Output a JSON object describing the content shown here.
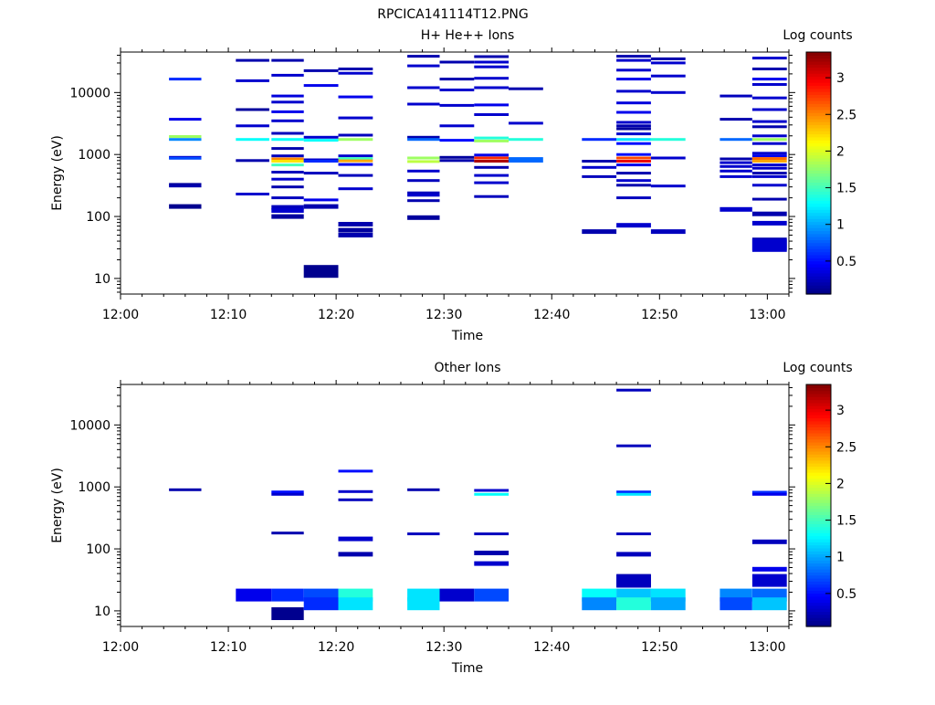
{
  "figure_title": "RPCICA141114T12.PNG",
  "chart_data": [
    {
      "type": "heatmap",
      "title": "H+ He++ Ions",
      "xlabel": "Time",
      "ylabel": "Energy (eV)",
      "y_scale": "log",
      "xlim_minutes": [
        0,
        62
      ],
      "ylim": [
        5.6,
        45000
      ],
      "x_ticks": [
        "12:00",
        "12:10",
        "12:20",
        "12:30",
        "12:40",
        "12:50",
        "13:00"
      ],
      "y_ticks": [
        "10",
        "100",
        "1000",
        "10000"
      ],
      "colorbar": {
        "label": "Log counts",
        "range": [
          0.05,
          3.35
        ],
        "ticks": [
          "0.5",
          "1",
          "1.5",
          "2",
          "2.5",
          "3"
        ],
        "colormap": "jet"
      },
      "columns": [
        {
          "t0": 4.5,
          "t1": 7.5,
          "cells": [
            [
              16500,
              0.6
            ],
            [
              3700,
              0.4
            ],
            [
              1950,
              1.8
            ],
            [
              1750,
              0.9
            ],
            [
              900,
              0.3
            ],
            [
              870,
              0.7
            ],
            [
              330,
              0.15
            ],
            [
              310,
              0.2
            ],
            [
              145,
              0.1
            ]
          ]
        },
        {
          "t0": 10.7,
          "t1": 13.8,
          "cells": [
            [
              33000,
              0.2
            ],
            [
              15500,
              0.3
            ],
            [
              5300,
              0.15
            ],
            [
              2900,
              0.3
            ],
            [
              1750,
              1.3
            ],
            [
              800,
              0.2
            ],
            [
              230,
              0.3
            ]
          ]
        },
        {
          "t0": 14,
          "t1": 17,
          "cells": [
            [
              33000,
              0.2
            ],
            [
              19000,
              0.3
            ],
            [
              8800,
              0.35
            ],
            [
              7000,
              0.3
            ],
            [
              4900,
              0.4
            ],
            [
              3500,
              0.3
            ],
            [
              2200,
              0.25
            ],
            [
              1750,
              1.3
            ],
            [
              1250,
              0.2
            ],
            [
              950,
              0.25
            ],
            [
              850,
              2.5
            ],
            [
              780,
              2.2
            ],
            [
              680,
              1.5
            ],
            [
              520,
              0.25
            ],
            [
              400,
              0.3
            ],
            [
              300,
              0.2
            ],
            [
              200,
              0.25
            ],
            [
              140,
              0.25
            ],
            [
              125,
              0.3
            ],
            [
              100,
              0.15
            ]
          ]
        },
        {
          "t0": 17,
          "t1": 20.2,
          "cells": [
            [
              22500,
              0.2
            ],
            [
              13000,
              0.4
            ],
            [
              1900,
              0.3
            ],
            [
              1700,
              1.3
            ],
            [
              820,
              0.3
            ],
            [
              780,
              0.6
            ],
            [
              500,
              0.25
            ],
            [
              185,
              0.4
            ],
            [
              145,
              0.2
            ],
            [
              13,
              0.1
            ]
          ]
        },
        {
          "t0": 20.2,
          "t1": 23.4,
          "cells": [
            [
              24000,
              0.2
            ],
            [
              20500,
              0.3
            ],
            [
              8500,
              0.4
            ],
            [
              3900,
              0.3
            ],
            [
              2050,
              0.25
            ],
            [
              1750,
              1.8
            ],
            [
              950,
              0.3
            ],
            [
              860,
              1.5
            ],
            [
              790,
              2.4
            ],
            [
              690,
              0.4
            ],
            [
              460,
              0.25
            ],
            [
              280,
              0.3
            ],
            [
              75,
              0.2
            ],
            [
              60,
              0.15
            ],
            [
              50,
              0.2
            ]
          ]
        },
        {
          "t0": 26.6,
          "t1": 29.6,
          "cells": [
            [
              38500,
              0.2
            ],
            [
              27000,
              0.3
            ],
            [
              12000,
              0.3
            ],
            [
              6500,
              0.3
            ],
            [
              1900,
              0.2
            ],
            [
              1750,
              0.8
            ],
            [
              880,
              1.8
            ],
            [
              770,
              1.9
            ],
            [
              540,
              0.3
            ],
            [
              380,
              0.25
            ],
            [
              240,
              0.25
            ],
            [
              220,
              0.3
            ],
            [
              180,
              0.2
            ],
            [
              96,
              0.15
            ]
          ]
        },
        {
          "t0": 29.6,
          "t1": 32.8,
          "cells": [
            [
              31000,
              0.2
            ],
            [
              16500,
              0.2
            ],
            [
              11000,
              0.3
            ],
            [
              6200,
              0.3
            ],
            [
              2900,
              0.3
            ],
            [
              1700,
              0.5
            ],
            [
              900,
              0.15
            ],
            [
              800,
              0.2
            ]
          ]
        },
        {
          "t0": 32.8,
          "t1": 36,
          "cells": [
            [
              38000,
              0.2
            ],
            [
              31000,
              0.3
            ],
            [
              26000,
              0.3
            ],
            [
              17000,
              0.3
            ],
            [
              12000,
              0.3
            ],
            [
              6300,
              0.4
            ],
            [
              4400,
              0.3
            ],
            [
              1850,
              1.4
            ],
            [
              1650,
              1.8
            ],
            [
              980,
              0.4
            ],
            [
              880,
              2.8
            ],
            [
              780,
              3.2
            ],
            [
              620,
              0.2
            ],
            [
              460,
              0.3
            ],
            [
              350,
              0.3
            ],
            [
              210,
              0.25
            ]
          ]
        },
        {
          "t0": 36,
          "t1": 39.2,
          "cells": [
            [
              11500,
              0.2
            ],
            [
              3200,
              0.3
            ],
            [
              1750,
              1.4
            ],
            [
              860,
              0.8
            ],
            [
              780,
              0.8
            ]
          ]
        },
        {
          "t0": 42.8,
          "t1": 46,
          "cells": [
            [
              1750,
              0.6
            ],
            [
              780,
              0.2
            ],
            [
              620,
              0.3
            ],
            [
              440,
              0.25
            ],
            [
              57,
              0.2
            ]
          ]
        },
        {
          "t0": 46,
          "t1": 49.2,
          "cells": [
            [
              38500,
              0.2
            ],
            [
              33000,
              0.3
            ],
            [
              23000,
              0.3
            ],
            [
              16500,
              0.4
            ],
            [
              10500,
              0.3
            ],
            [
              6800,
              0.35
            ],
            [
              4800,
              0.4
            ],
            [
              3300,
              0.3
            ],
            [
              2900,
              0.2
            ],
            [
              2600,
              0.15
            ],
            [
              2150,
              0.3
            ],
            [
              1750,
              1.2
            ],
            [
              1500,
              0.5
            ],
            [
              1000,
              0.5
            ],
            [
              880,
              2.7
            ],
            [
              780,
              3.0
            ],
            [
              680,
              0.4
            ],
            [
              500,
              0.2
            ],
            [
              380,
              0.3
            ],
            [
              320,
              0.2
            ],
            [
              200,
              0.25
            ],
            [
              72,
              0.3
            ]
          ]
        },
        {
          "t0": 49.2,
          "t1": 52.4,
          "cells": [
            [
              35000,
              0.2
            ],
            [
              30000,
              0.3
            ],
            [
              18500,
              0.3
            ],
            [
              10000,
              0.3
            ],
            [
              1750,
              1.4
            ],
            [
              880,
              0.3
            ],
            [
              310,
              0.3
            ],
            [
              57,
              0.25
            ]
          ]
        },
        {
          "t0": 55.6,
          "t1": 58.6,
          "cells": [
            [
              8800,
              0.25
            ],
            [
              3700,
              0.2
            ],
            [
              1750,
              0.8
            ],
            [
              850,
              0.2
            ],
            [
              740,
              0.3
            ],
            [
              640,
              0.3
            ],
            [
              540,
              0.3
            ],
            [
              440,
              0.3
            ],
            [
              130,
              0.3
            ]
          ]
        },
        {
          "t0": 58.6,
          "t1": 61.8,
          "cells": [
            [
              36000,
              0.3
            ],
            [
              24000,
              0.2
            ],
            [
              16500,
              0.4
            ],
            [
              13500,
              0.3
            ],
            [
              8200,
              0.3
            ],
            [
              5300,
              0.3
            ],
            [
              3400,
              0.3
            ],
            [
              2800,
              0.2
            ],
            [
              2000,
              0.3
            ],
            [
              1750,
              1.8
            ],
            [
              1500,
              0.3
            ],
            [
              1050,
              0.3
            ],
            [
              950,
              0.4
            ],
            [
              860,
              2.6
            ],
            [
              780,
              2.4
            ],
            [
              680,
              0.3
            ],
            [
              600,
              0.3
            ],
            [
              500,
              0.2
            ],
            [
              440,
              0.3
            ],
            [
              320,
              0.3
            ],
            [
              190,
              0.2
            ],
            [
              110,
              0.2
            ],
            [
              78,
              0.3
            ],
            [
              36,
              0.2
            ],
            [
              34,
              0.3
            ]
          ]
        }
      ]
    },
    {
      "type": "heatmap",
      "title": "Other Ions",
      "xlabel": "Time",
      "ylabel": "Energy (eV)",
      "y_scale": "log",
      "xlim_minutes": [
        0,
        62
      ],
      "ylim": [
        5.6,
        45000
      ],
      "x_ticks": [
        "12:00",
        "12:10",
        "12:20",
        "12:30",
        "12:40",
        "12:50",
        "13:00"
      ],
      "y_ticks": [
        "10",
        "100",
        "1000",
        "10000"
      ],
      "colorbar": {
        "label": "Log counts",
        "range": [
          0.05,
          3.35
        ],
        "ticks": [
          "0.5",
          "1",
          "1.5",
          "2",
          "2.5",
          "3"
        ],
        "colormap": "jet"
      },
      "columns": [
        {
          "t0": 4.5,
          "t1": 7.5,
          "cells": [
            [
              900,
              0.2
            ]
          ]
        },
        {
          "t0": 10.7,
          "t1": 14,
          "cells": [
            [
              18,
              0.4
            ]
          ]
        },
        {
          "t0": 14,
          "t1": 17,
          "cells": [
            [
              830,
              0.5
            ],
            [
              760,
              0.3
            ],
            [
              180,
              0.2
            ],
            [
              18,
              0.6
            ],
            [
              9,
              0.1
            ]
          ]
        },
        {
          "t0": 17,
          "t1": 20.2,
          "cells": [
            [
              18,
              0.7
            ],
            [
              13,
              0.6
            ]
          ]
        },
        {
          "t0": 20.2,
          "t1": 23.4,
          "cells": [
            [
              1800,
              0.5
            ],
            [
              840,
              0.3
            ],
            [
              620,
              0.25
            ],
            [
              145,
              0.3
            ],
            [
              82,
              0.2
            ],
            [
              18,
              1.4
            ],
            [
              13,
              1.2
            ]
          ]
        },
        {
          "t0": 26.6,
          "t1": 29.6,
          "cells": [
            [
              900,
              0.2
            ],
            [
              175,
              0.25
            ],
            [
              18,
              1.2
            ],
            [
              13,
              1.2
            ]
          ]
        },
        {
          "t0": 29.6,
          "t1": 32.8,
          "cells": [
            [
              18,
              0.3
            ]
          ]
        },
        {
          "t0": 32.8,
          "t1": 36,
          "cells": [
            [
              880,
              0.3
            ],
            [
              760,
              1.3
            ],
            [
              175,
              0.25
            ],
            [
              86,
              0.2
            ],
            [
              58,
              0.3
            ],
            [
              18,
              0.7
            ]
          ]
        },
        {
          "t0": 42.8,
          "t1": 46,
          "cells": [
            [
              18,
              1.3
            ],
            [
              13,
              0.9
            ]
          ]
        },
        {
          "t0": 46,
          "t1": 49.2,
          "cells": [
            [
              36500,
              0.25
            ],
            [
              4600,
              0.25
            ],
            [
              830,
              0.6
            ],
            [
              760,
              1.2
            ],
            [
              175,
              0.25
            ],
            [
              82,
              0.25
            ],
            [
              31,
              0.2
            ],
            [
              30,
              0.25
            ],
            [
              18,
              1.1
            ],
            [
              13,
              1.4
            ]
          ]
        },
        {
          "t0": 49.2,
          "t1": 52.4,
          "cells": [
            [
              18,
              1.2
            ],
            [
              13,
              1.0
            ]
          ]
        },
        {
          "t0": 55.6,
          "t1": 58.6,
          "cells": [
            [
              18,
              0.9
            ],
            [
              13,
              0.7
            ]
          ]
        },
        {
          "t0": 58.6,
          "t1": 61.8,
          "cells": [
            [
              820,
              0.6
            ],
            [
              760,
              0.4
            ],
            [
              130,
              0.25
            ],
            [
              47,
              0.4
            ],
            [
              31,
              0.3
            ],
            [
              18,
              0.8
            ],
            [
              13,
              1.1
            ]
          ]
        }
      ]
    }
  ]
}
